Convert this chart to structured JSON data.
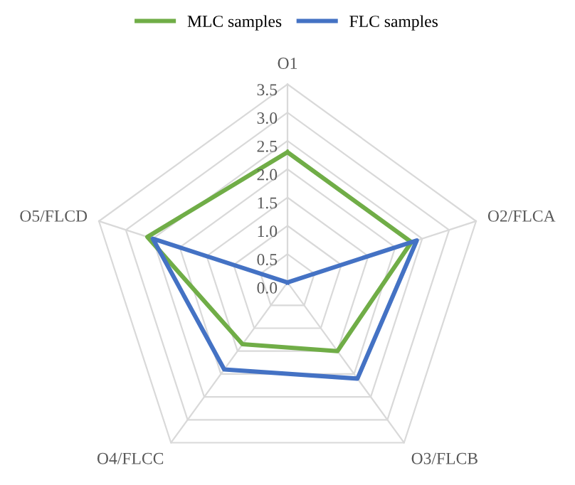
{
  "chart_data": {
    "type": "radar",
    "categories": [
      "O1",
      "O2/FLCA",
      "O3/FLCB",
      "O4/FLCC",
      "O5/FLCD"
    ],
    "series": [
      {
        "name": "MLC samples",
        "color": "#70ad47",
        "values": [
          2.3,
          2.3,
          1.5,
          1.35,
          2.6
        ]
      },
      {
        "name": "FLC samples",
        "color": "#4472c4",
        "values": [
          0,
          2.4,
          2.1,
          1.9,
          2.5
        ]
      }
    ],
    "ylim": [
      0,
      3.5
    ],
    "yticks": [
      {
        "value": 0,
        "label": "0.0"
      },
      {
        "value": 0.5,
        "label": "0.5"
      },
      {
        "value": 1,
        "label": "1.0"
      },
      {
        "value": 1.5,
        "label": "1.5"
      },
      {
        "value": 2,
        "label": "2.0"
      },
      {
        "value": 2.5,
        "label": "2.5"
      },
      {
        "value": 3,
        "label": "3.0"
      },
      {
        "value": 3.5,
        "label": "3.5"
      }
    ],
    "grid": true,
    "legend": "top",
    "marker": "none",
    "line_style": "solid"
  }
}
